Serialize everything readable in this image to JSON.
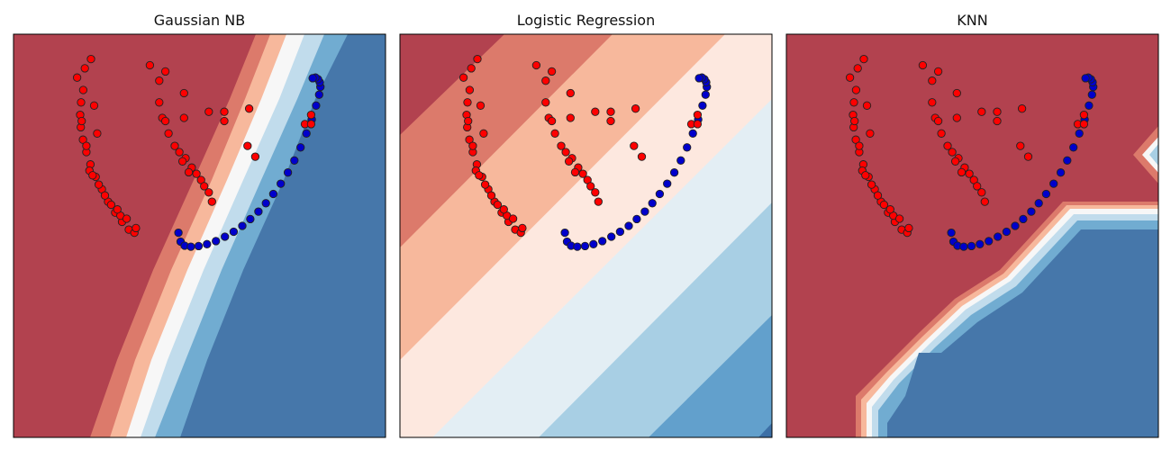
{
  "chart_data": [
    {
      "type": "scatter",
      "title": "Gaussian NB",
      "xlabel": "",
      "ylabel": "",
      "xlim": [
        -4,
        8
      ],
      "ylim": [
        -3,
        10
      ],
      "grid": false,
      "legend": "none",
      "background": "decision-boundary-contours",
      "series": [
        {
          "class": "red",
          "color": "#ff0000"
        },
        {
          "class": "blue",
          "color": "#0000cc"
        }
      ]
    },
    {
      "type": "scatter",
      "title": "Logistic Regression",
      "xlabel": "",
      "ylabel": "",
      "xlim": [
        -4,
        8
      ],
      "ylim": [
        -3,
        10
      ],
      "grid": false,
      "legend": "none",
      "background": "decision-boundary-contours",
      "series": [
        {
          "class": "red",
          "color": "#ff0000"
        },
        {
          "class": "blue",
          "color": "#0000cc"
        }
      ]
    },
    {
      "type": "scatter",
      "title": "KNN",
      "xlabel": "",
      "ylabel": "",
      "xlim": [
        -4,
        8
      ],
      "ylim": [
        -3,
        10
      ],
      "grid": false,
      "legend": "none",
      "background": "decision-boundary-contours",
      "series": [
        {
          "class": "red",
          "color": "#ff0000"
        },
        {
          "class": "blue",
          "color": "#0000cc"
        }
      ]
    }
  ],
  "points": {
    "blue": [
      [
        1.32,
        3.6
      ],
      [
        1.39,
        3.31
      ],
      [
        1.52,
        3.18
      ],
      [
        1.72,
        3.15
      ],
      [
        1.97,
        3.17
      ],
      [
        2.24,
        3.23
      ],
      [
        2.53,
        3.33
      ],
      [
        2.82,
        3.47
      ],
      [
        3.1,
        3.63
      ],
      [
        3.38,
        3.82
      ],
      [
        3.64,
        4.04
      ],
      [
        3.9,
        4.28
      ],
      [
        4.14,
        4.55
      ],
      [
        4.38,
        4.85
      ],
      [
        4.62,
        5.18
      ],
      [
        4.85,
        5.54
      ],
      [
        5.06,
        5.93
      ],
      [
        5.26,
        6.35
      ],
      [
        5.45,
        6.8
      ],
      [
        5.62,
        7.25
      ],
      [
        5.76,
        7.7
      ],
      [
        5.86,
        8.05
      ],
      [
        5.9,
        8.3
      ],
      [
        5.88,
        8.45
      ],
      [
        5.82,
        8.55
      ],
      [
        5.74,
        8.6
      ],
      [
        5.65,
        8.58
      ]
    ],
    "red_curve": [
      [
        -1.75,
        8.2
      ],
      [
        -1.82,
        7.8
      ],
      [
        -1.85,
        7.4
      ],
      [
        -1.83,
        7.0
      ],
      [
        -1.76,
        6.6
      ],
      [
        -1.65,
        6.2
      ],
      [
        -1.52,
        5.8
      ],
      [
        -1.35,
        5.4
      ],
      [
        -1.15,
        5.0
      ],
      [
        -0.95,
        4.6
      ],
      [
        -0.72,
        4.25
      ],
      [
        -0.5,
        3.95
      ],
      [
        -0.28,
        3.7
      ],
      [
        -0.1,
        3.6
      ],
      [
        -0.55,
        4.15
      ],
      [
        -0.85,
        4.5
      ],
      [
        -1.25,
        5.15
      ],
      [
        -1.55,
        5.6
      ],
      [
        -1.65,
        6.4
      ],
      [
        -1.8,
        7.2
      ],
      [
        -1.95,
        8.6
      ],
      [
        -1.4,
        7.7
      ],
      [
        -1.3,
        6.8
      ],
      [
        -1.7,
        8.9
      ],
      [
        -1.5,
        9.2
      ],
      [
        -0.05,
        3.75
      ],
      [
        -0.35,
        4.05
      ],
      [
        -0.65,
        4.35
      ],
      [
        -1.05,
        4.8
      ],
      [
        -1.45,
        5.45
      ]
    ],
    "red_cluster": [
      [
        1.2,
        6.4
      ],
      [
        1.35,
        6.2
      ],
      [
        1.55,
        6.0
      ],
      [
        1.75,
        5.7
      ],
      [
        1.9,
        5.5
      ],
      [
        2.05,
        5.3
      ],
      [
        2.15,
        5.1
      ],
      [
        2.3,
        4.9
      ],
      [
        1.45,
        5.9
      ],
      [
        1.65,
        5.55
      ],
      [
        1.0,
        6.8
      ],
      [
        0.8,
        7.3
      ],
      [
        0.7,
        7.8
      ],
      [
        0.7,
        8.5
      ],
      [
        0.9,
        8.8
      ],
      [
        0.4,
        9.0
      ],
      [
        1.5,
        8.1
      ],
      [
        2.3,
        7.5
      ],
      [
        2.8,
        7.5
      ],
      [
        2.8,
        7.2
      ],
      [
        1.5,
        7.3
      ],
      [
        0.9,
        7.2
      ],
      [
        3.6,
        7.6
      ],
      [
        3.55,
        6.4
      ],
      [
        3.8,
        6.05
      ],
      [
        5.6,
        7.4
      ],
      [
        5.4,
        7.1
      ],
      [
        5.6,
        7.1
      ],
      [
        2.4,
        4.6
      ]
    ]
  }
}
